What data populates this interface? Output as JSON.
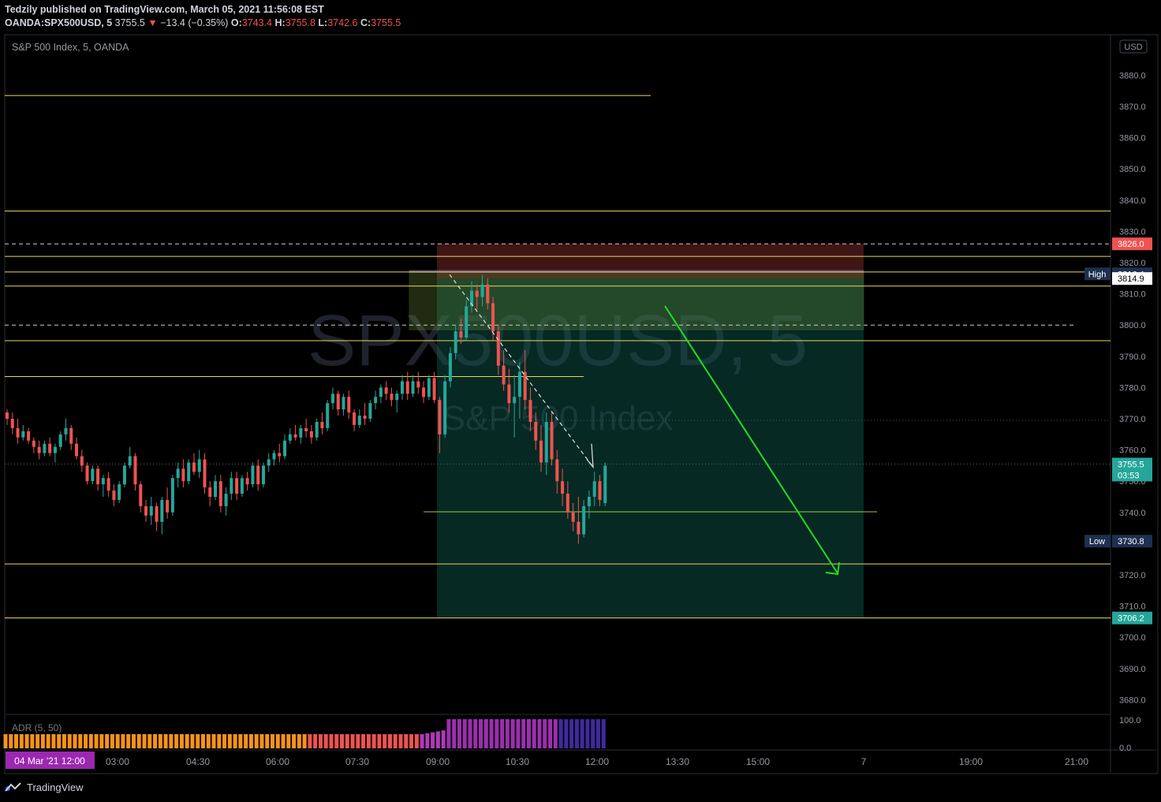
{
  "header": {
    "publisher_line": "Tedzily published on TradingView.com, March 05, 2021 11:56:08 EST",
    "symbol": "OANDA:SPX500USD, 5",
    "last": "3755.5",
    "arrow": "▼",
    "change": "−13.4 (−0.35%)",
    "o_label": "O:",
    "o_val": "3743.4",
    "h_label": "H:",
    "h_val": "3755.8",
    "l_label": "L:",
    "l_val": "3742.6",
    "c_label": "C:",
    "c_val": "3755.5"
  },
  "legend": "S&P 500 Index, 5, OANDA",
  "watermark": {
    "line1": "SPX500USD, 5",
    "line2": "S&P 500 Index"
  },
  "currency": "USD",
  "indicator": {
    "label": "ADR (5, 50)",
    "ticks": [
      "100.0",
      "0.0"
    ]
  },
  "footer": {
    "brand": "TradingView"
  },
  "colors": {
    "up": "#26a69a",
    "down": "#ef5350",
    "level": "#e8d95a",
    "arrow": "#22dd22",
    "bg": "#000000"
  },
  "chart_data": {
    "type": "candlestick",
    "title": "S&P 500 Index, 5, OANDA",
    "ylim": [
      3675,
      3890
    ],
    "y_ticks": [
      3680,
      3690,
      3700,
      3710,
      3720,
      3730,
      3740,
      3750,
      3760,
      3770,
      3780,
      3790,
      3800,
      3810,
      3820,
      3830,
      3840,
      3850,
      3860,
      3870,
      3880
    ],
    "x_ticks": [
      "03:00",
      "04:30",
      "06:00",
      "07:30",
      "09:00",
      "10:30",
      "12:00",
      "13:30",
      "15:00",
      "7",
      "19:00",
      "21:00"
    ],
    "x_start_label": "04 Mar '21   12:00",
    "price_labels": [
      {
        "value": 3826.0,
        "text": "3826.0",
        "kind": "red"
      },
      {
        "value": 3816.4,
        "text": "3816.4",
        "kind": "high",
        "tag": "High"
      },
      {
        "value": 3814.9,
        "text": "3814.9",
        "kind": "white"
      },
      {
        "value": 3755.5,
        "text": "3755.5",
        "kind": "current",
        "sub": "03:53"
      },
      {
        "value": 3730.8,
        "text": "3730.8",
        "kind": "low",
        "tag": "Low"
      },
      {
        "value": 3706.2,
        "text": "3706.2",
        "kind": "green"
      }
    ],
    "horizontal_levels": [
      3873.5,
      3836.5,
      3822.0,
      3817.0,
      3812.5,
      3795.0,
      3783.5,
      3723.5,
      3706.2
    ],
    "dashed_levels": [
      3826.0,
      3800.0
    ],
    "short_position": {
      "entry": 3814.9,
      "stop": 3826.0,
      "target": 3706.2
    },
    "candles": [
      [
        3772,
        3773,
        3768,
        3770
      ],
      [
        3770,
        3772,
        3765,
        3767
      ],
      [
        3767,
        3770,
        3762,
        3764
      ],
      [
        3764,
        3768,
        3763,
        3766
      ],
      [
        3766,
        3767,
        3762,
        3763
      ],
      [
        3763,
        3764,
        3759,
        3761
      ],
      [
        3761,
        3763,
        3757,
        3759
      ],
      [
        3759,
        3763,
        3758,
        3762
      ],
      [
        3762,
        3764,
        3758,
        3759
      ],
      [
        3759,
        3762,
        3756,
        3761
      ],
      [
        3761,
        3766,
        3760,
        3765
      ],
      [
        3765,
        3770,
        3763,
        3767
      ],
      [
        3767,
        3768,
        3760,
        3762
      ],
      [
        3762,
        3764,
        3757,
        3758
      ],
      [
        3758,
        3760,
        3753,
        3755
      ],
      [
        3755,
        3756,
        3749,
        3750
      ],
      [
        3750,
        3755,
        3749,
        3754
      ],
      [
        3754,
        3755,
        3747,
        3749
      ],
      [
        3749,
        3752,
        3745,
        3751
      ],
      [
        3751,
        3753,
        3745,
        3747
      ],
      [
        3747,
        3749,
        3742,
        3744
      ],
      [
        3744,
        3750,
        3743,
        3749
      ],
      [
        3749,
        3756,
        3748,
        3755
      ],
      [
        3755,
        3761,
        3754,
        3758
      ],
      [
        3758,
        3759,
        3747,
        3749
      ],
      [
        3749,
        3750,
        3740,
        3742
      ],
      [
        3742,
        3744,
        3737,
        3739
      ],
      [
        3739,
        3745,
        3736,
        3742
      ],
      [
        3742,
        3743,
        3734,
        3737
      ],
      [
        3737,
        3745,
        3733,
        3744
      ],
      [
        3744,
        3748,
        3738,
        3740
      ],
      [
        3740,
        3752,
        3739,
        3751
      ],
      [
        3751,
        3756,
        3748,
        3754
      ],
      [
        3754,
        3757,
        3748,
        3750
      ],
      [
        3750,
        3757,
        3749,
        3756
      ],
      [
        3756,
        3759,
        3752,
        3753
      ],
      [
        3753,
        3760,
        3751,
        3757
      ],
      [
        3757,
        3759,
        3746,
        3748
      ],
      [
        3748,
        3750,
        3742,
        3745
      ],
      [
        3745,
        3752,
        3744,
        3750
      ],
      [
        3750,
        3752,
        3740,
        3742
      ],
      [
        3742,
        3748,
        3739,
        3746
      ],
      [
        3746,
        3753,
        3744,
        3751
      ],
      [
        3751,
        3753,
        3744,
        3746
      ],
      [
        3746,
        3752,
        3745,
        3751
      ],
      [
        3751,
        3753,
        3747,
        3749
      ],
      [
        3749,
        3756,
        3748,
        3755
      ],
      [
        3755,
        3757,
        3747,
        3749
      ],
      [
        3749,
        3756,
        3748,
        3755
      ],
      [
        3755,
        3759,
        3753,
        3757
      ],
      [
        3757,
        3760,
        3755,
        3759
      ],
      [
        3759,
        3762,
        3756,
        3758
      ],
      [
        3758,
        3765,
        3757,
        3763
      ],
      [
        3763,
        3767,
        3762,
        3765
      ],
      [
        3765,
        3768,
        3763,
        3764
      ],
      [
        3764,
        3768,
        3762,
        3767
      ],
      [
        3767,
        3770,
        3764,
        3766
      ],
      [
        3766,
        3768,
        3762,
        3764
      ],
      [
        3764,
        3770,
        3763,
        3769
      ],
      [
        3769,
        3772,
        3765,
        3767
      ],
      [
        3767,
        3776,
        3766,
        3775
      ],
      [
        3775,
        3780,
        3773,
        3778
      ],
      [
        3778,
        3779,
        3771,
        3773
      ],
      [
        3773,
        3778,
        3771,
        3777
      ],
      [
        3777,
        3779,
        3770,
        3772
      ],
      [
        3772,
        3773,
        3766,
        3768
      ],
      [
        3768,
        3773,
        3767,
        3771
      ],
      [
        3771,
        3775,
        3768,
        3770
      ],
      [
        3770,
        3776,
        3769,
        3775
      ],
      [
        3775,
        3779,
        3773,
        3777
      ],
      [
        3777,
        3781,
        3775,
        3780
      ],
      [
        3780,
        3782,
        3776,
        3778
      ],
      [
        3778,
        3780,
        3774,
        3776
      ],
      [
        3776,
        3779,
        3772,
        3778
      ],
      [
        3778,
        3784,
        3776,
        3782
      ],
      [
        3782,
        3785,
        3776,
        3778
      ],
      [
        3778,
        3784,
        3777,
        3782
      ],
      [
        3782,
        3785,
        3778,
        3780
      ],
      [
        3780,
        3782,
        3775,
        3777
      ],
      [
        3777,
        3784,
        3776,
        3783
      ],
      [
        3783,
        3785,
        3775,
        3776
      ],
      [
        3776,
        3777,
        3759,
        3765
      ],
      [
        3765,
        3784,
        3764,
        3782
      ],
      [
        3782,
        3793,
        3780,
        3791
      ],
      [
        3791,
        3800,
        3789,
        3798
      ],
      [
        3798,
        3802,
        3794,
        3796
      ],
      [
        3796,
        3808,
        3795,
        3806
      ],
      [
        3806,
        3814,
        3804,
        3811
      ],
      [
        3811,
        3813,
        3805,
        3809
      ],
      [
        3809,
        3816,
        3806,
        3813
      ],
      [
        3813,
        3815,
        3805,
        3807
      ],
      [
        3807,
        3809,
        3795,
        3798
      ],
      [
        3798,
        3800,
        3784,
        3787
      ],
      [
        3787,
        3792,
        3779,
        3781
      ],
      [
        3781,
        3786,
        3772,
        3775
      ],
      [
        3775,
        3784,
        3764,
        3777
      ],
      [
        3777,
        3788,
        3770,
        3785
      ],
      [
        3785,
        3792,
        3773,
        3776
      ],
      [
        3776,
        3780,
        3766,
        3769
      ],
      [
        3769,
        3772,
        3760,
        3763
      ],
      [
        3763,
        3768,
        3753,
        3756
      ],
      [
        3756,
        3772,
        3752,
        3769
      ],
      [
        3769,
        3772,
        3755,
        3757
      ],
      [
        3757,
        3760,
        3746,
        3750
      ],
      [
        3750,
        3754,
        3742,
        3746
      ],
      [
        3746,
        3750,
        3738,
        3740
      ],
      [
        3740,
        3743,
        3734,
        3737
      ],
      [
        3737,
        3745,
        3730,
        3733
      ],
      [
        3733,
        3744,
        3732,
        3742
      ],
      [
        3742,
        3747,
        3738,
        3745
      ],
      [
        3745,
        3753,
        3742,
        3750
      ],
      [
        3750,
        3752,
        3742,
        3744
      ],
      [
        3743,
        3756,
        3742,
        3755
      ]
    ]
  }
}
